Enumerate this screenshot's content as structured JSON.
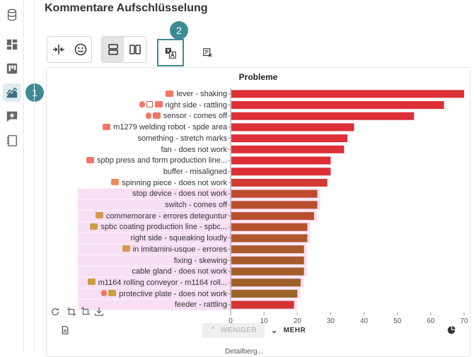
{
  "page": {
    "title": "Kommentare Aufschlüsselung"
  },
  "badges": {
    "first": "1",
    "second": "2"
  },
  "sidebar": {
    "items": [
      {
        "icon": "database-icon"
      },
      {
        "icon": "dashboard-icon"
      },
      {
        "icon": "board-icon"
      },
      {
        "icon": "chart-area-icon",
        "active": true
      },
      {
        "icon": "feedback-icon"
      },
      {
        "icon": "notebook-icon"
      }
    ]
  },
  "toolbar": {
    "buttons": [
      "split-icon",
      "smiley-icon",
      "stacked-rows-icon",
      "columns-icon",
      "translate-icon",
      "list-x-icon"
    ]
  },
  "chart_data": {
    "type": "bar",
    "orientation": "horizontal",
    "title": "Probleme",
    "categories": [
      "lever - shaking",
      "right side - rattling",
      "sensor - comes off",
      "m1279 welding robot - spde area",
      "something - stretch marks",
      "fan - does not work",
      "spbp press and form production line...",
      "buffer - misaligned",
      "spinning piece - does not work",
      "stop device - does not work",
      "switch - comes off",
      "commemorare - errores deteguntur",
      "spbc coating production line - spbc...",
      "right side - squeaking loudly",
      "in imitamini-usque - errores",
      "fixing - skewing",
      "cable gland - does not work",
      "m1164 rolling conveyor - m1164 roll...",
      "protective plate - does not work",
      "feeder - rattling"
    ],
    "values": [
      70,
      64,
      55,
      37,
      35,
      34,
      30,
      30,
      29,
      26,
      26,
      25,
      23,
      23,
      22,
      22,
      22,
      21,
      20,
      19
    ],
    "bar_colors": [
      "#dc2f36",
      "#dc2f36",
      "#dc2f36",
      "#dc2f36",
      "#dc2f36",
      "#dc2f36",
      "#dc2f36",
      "#dc2f36",
      "#d13a33",
      "#bf4a2f",
      "#b8502d",
      "#b8502d",
      "#b4532c",
      "#ae572b",
      "#ab592b",
      "#a85b2a",
      "#a45e2a",
      "#a06029",
      "#9a6428",
      "#d13533"
    ],
    "tag_colors": [
      "#f07864",
      "#f07864",
      "#f07864",
      "#f07864",
      null,
      null,
      "#f07864",
      null,
      "#f28c5a",
      null,
      null,
      "#d29a4b",
      "#d29a4b",
      null,
      "#d29a4b",
      null,
      null,
      "#c8a040",
      "#c8a040",
      null
    ],
    "has_bulb": [
      false,
      true,
      true,
      false,
      false,
      false,
      false,
      false,
      false,
      false,
      false,
      false,
      false,
      false,
      false,
      false,
      false,
      false,
      true,
      false
    ],
    "has_calendar": [
      false,
      true,
      false,
      false,
      false,
      false,
      false,
      false,
      false,
      false,
      false,
      false,
      false,
      false,
      false,
      false,
      false,
      false,
      false,
      false
    ],
    "highlight": [
      false,
      false,
      false,
      false,
      false,
      false,
      false,
      false,
      false,
      true,
      true,
      true,
      true,
      true,
      true,
      true,
      true,
      true,
      true,
      true
    ],
    "xlim": [
      0,
      70
    ],
    "xticks": [
      0,
      10,
      20,
      30,
      40,
      50,
      60,
      70
    ]
  },
  "controls": {
    "less_label": "WENIGER",
    "more_label": "MEHR"
  },
  "footer_text": "Detailberg..."
}
